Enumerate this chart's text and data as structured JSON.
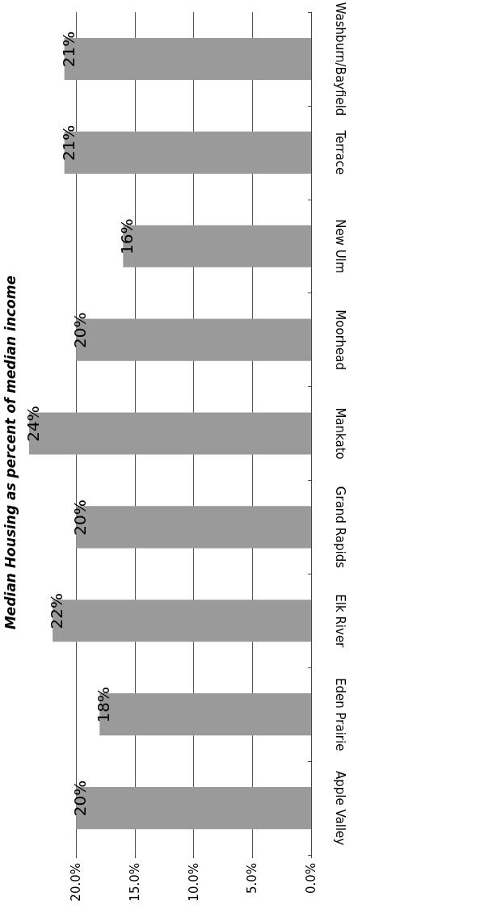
{
  "chart_data": {
    "type": "bar",
    "orientation": "horizontal",
    "title": "Median Housing as percent of median income",
    "categories": [
      "Washburn/Bayfield",
      "Terrace",
      "New Ulm",
      "Moorhead",
      "Mankato",
      "Grand Rapids",
      "Elk River",
      "Eden Prairie",
      "Apple Valley"
    ],
    "values": [
      21,
      21,
      16,
      20,
      24,
      20,
      22,
      18,
      20
    ],
    "value_labels": [
      "21%",
      "21%",
      "16%",
      "20%",
      "24%",
      "20%",
      "22%",
      "18%",
      "20%"
    ],
    "color": "#9a9a9a",
    "xlim": [
      24,
      0
    ],
    "xticks": [
      {
        "value": 20,
        "label": "20.0%"
      },
      {
        "value": 15,
        "label": "15.0%"
      },
      {
        "value": 10,
        "label": "10.0%"
      },
      {
        "value": 5,
        "label": "5.0%"
      },
      {
        "value": 0,
        "label": "0.0%"
      }
    ],
    "grid": "x"
  }
}
